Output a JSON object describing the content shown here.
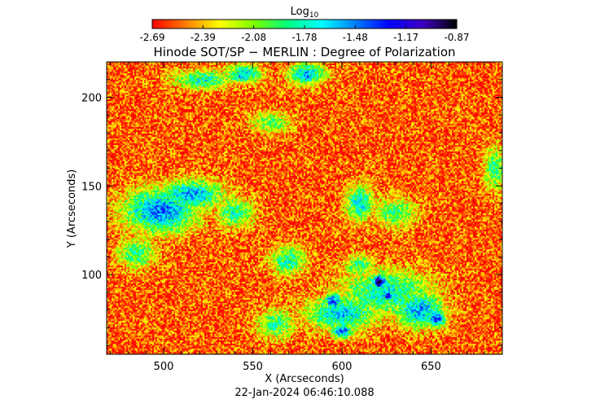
{
  "chart_data": {
    "type": "heatmap",
    "title": "Hinode SOT/SP − MERLIN : Degree of Polarization",
    "xlabel": "X (Arcseconds)",
    "ylabel": "Y (Arcseconds)",
    "timestamp": "22-Jan-2024 06:46:10.088",
    "colorbar": {
      "label_base": "Log",
      "label_sub": "10",
      "ticks": [
        "-2.69",
        "-2.39",
        "-2.08",
        "-1.78",
        "-1.48",
        "-1.17",
        "-0.87"
      ],
      "range": [
        -2.69,
        -0.87
      ],
      "colors": [
        "#ff0000",
        "#ff7f00",
        "#ffff00",
        "#7fff00",
        "#00ff7f",
        "#00ffff",
        "#007fff",
        "#0000ff",
        "#3f00bf",
        "#000000"
      ]
    },
    "xlim": [
      468,
      690
    ],
    "ylim": [
      55,
      220
    ],
    "xticks": [
      500,
      550,
      600,
      650
    ],
    "yticks": [
      100,
      150,
      200
    ],
    "xtick_labels": [
      "500",
      "550",
      "600",
      "650"
    ],
    "ytick_labels": [
      "100",
      "150",
      "200"
    ],
    "background_level": -2.55,
    "features": [
      {
        "x": 522,
        "y": 210,
        "sx": 16,
        "sy": 5,
        "level": -1.75
      },
      {
        "x": 545,
        "y": 213,
        "sx": 10,
        "sy": 5,
        "level": -1.6
      },
      {
        "x": 580,
        "y": 213,
        "sx": 10,
        "sy": 6,
        "level": -1.55
      },
      {
        "x": 560,
        "y": 186,
        "sx": 12,
        "sy": 6,
        "level": -2.0
      },
      {
        "x": 498,
        "y": 136,
        "sx": 20,
        "sy": 12,
        "level": -1.45
      },
      {
        "x": 515,
        "y": 145,
        "sx": 18,
        "sy": 8,
        "level": -1.55
      },
      {
        "x": 540,
        "y": 135,
        "sx": 10,
        "sy": 8,
        "level": -1.8
      },
      {
        "x": 485,
        "y": 112,
        "sx": 10,
        "sy": 8,
        "level": -1.85
      },
      {
        "x": 610,
        "y": 140,
        "sx": 8,
        "sy": 10,
        "level": -1.7
      },
      {
        "x": 630,
        "y": 135,
        "sx": 12,
        "sy": 8,
        "level": -1.9
      },
      {
        "x": 570,
        "y": 108,
        "sx": 10,
        "sy": 8,
        "level": -1.8
      },
      {
        "x": 610,
        "y": 105,
        "sx": 8,
        "sy": 6,
        "level": -1.85
      },
      {
        "x": 625,
        "y": 90,
        "sx": 25,
        "sy": 12,
        "level": -1.7
      },
      {
        "x": 600,
        "y": 78,
        "sx": 20,
        "sy": 9,
        "level": -1.6
      },
      {
        "x": 643,
        "y": 80,
        "sx": 14,
        "sy": 10,
        "level": -1.55
      },
      {
        "x": 563,
        "y": 72,
        "sx": 10,
        "sy": 8,
        "level": -1.85
      },
      {
        "x": 621,
        "y": 96,
        "sx": 4,
        "sy": 4,
        "level": -0.9
      },
      {
        "x": 626,
        "y": 88,
        "sx": 3,
        "sy": 3,
        "level": -1.05
      },
      {
        "x": 653,
        "y": 75,
        "sx": 5,
        "sy": 5,
        "level": -1.3
      },
      {
        "x": 595,
        "y": 85,
        "sx": 5,
        "sy": 5,
        "level": -1.35
      },
      {
        "x": 600,
        "y": 68,
        "sx": 6,
        "sy": 4,
        "level": -1.35
      },
      {
        "x": 686,
        "y": 160,
        "sx": 6,
        "sy": 12,
        "level": -1.9
      }
    ]
  }
}
